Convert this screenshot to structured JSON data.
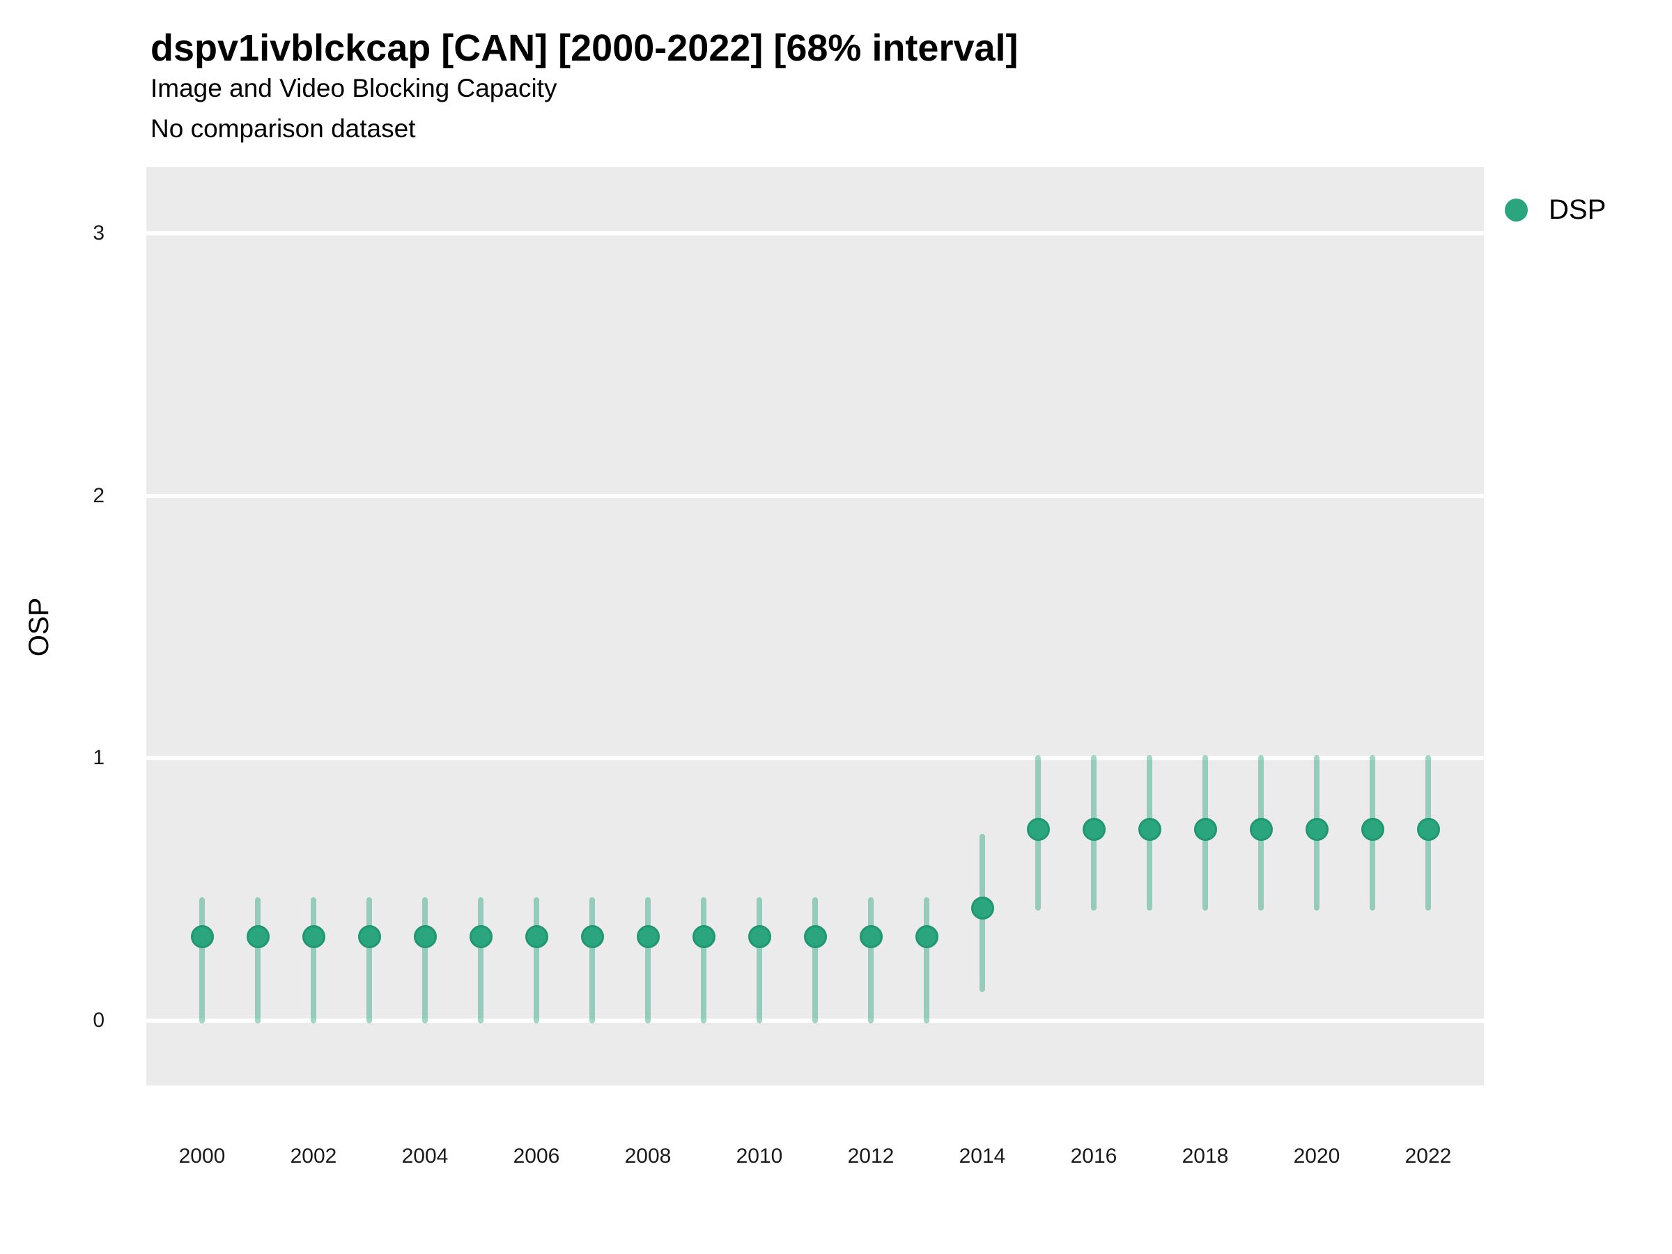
{
  "header": {
    "title": "dspv1ivblckcap [CAN] [2000-2022] [68% interval]",
    "subtitle": "Image and Video Blocking Capacity",
    "note": "No comparison dataset"
  },
  "legend": {
    "position": "right-top",
    "items": [
      {
        "label": "DSP",
        "color": "#2aa57e"
      }
    ]
  },
  "axes": {
    "y_title": "OSP",
    "y_ticks": [
      "0",
      "1",
      "2",
      "3"
    ],
    "x_ticks": [
      "2000",
      "2002",
      "2004",
      "2006",
      "2008",
      "2010",
      "2012",
      "2014",
      "2016",
      "2018",
      "2020",
      "2022"
    ]
  },
  "chart_data": {
    "type": "scatter",
    "title": "dspv1ivblckcap [CAN] [2000-2022] [68% interval]",
    "subtitle": "Image and Video Blocking Capacity",
    "note": "No comparison dataset",
    "xlabel": "",
    "ylabel": "OSP",
    "x": [
      2000,
      2001,
      2002,
      2003,
      2004,
      2005,
      2006,
      2007,
      2008,
      2009,
      2010,
      2011,
      2012,
      2013,
      2014,
      2015,
      2016,
      2017,
      2018,
      2019,
      2020,
      2021,
      2022
    ],
    "series": [
      {
        "name": "DSP",
        "values": [
          0.32,
          0.32,
          0.32,
          0.32,
          0.32,
          0.32,
          0.32,
          0.32,
          0.32,
          0.32,
          0.32,
          0.32,
          0.32,
          0.32,
          0.43,
          0.73,
          0.73,
          0.73,
          0.73,
          0.73,
          0.73,
          0.73,
          0.73
        ],
        "lower_68": [
          0.0,
          0.0,
          0.0,
          0.0,
          0.0,
          0.0,
          0.0,
          0.0,
          0.0,
          0.0,
          0.0,
          0.0,
          0.0,
          0.0,
          0.12,
          0.43,
          0.43,
          0.43,
          0.43,
          0.43,
          0.43,
          0.43,
          0.43
        ],
        "upper_68": [
          0.46,
          0.46,
          0.46,
          0.46,
          0.46,
          0.46,
          0.46,
          0.46,
          0.46,
          0.46,
          0.46,
          0.46,
          0.46,
          0.46,
          0.7,
          1.0,
          1.0,
          1.0,
          1.0,
          1.0,
          1.0,
          1.0,
          1.0
        ]
      }
    ],
    "xticks": [
      2000,
      2002,
      2004,
      2006,
      2008,
      2010,
      2012,
      2014,
      2016,
      2018,
      2020,
      2022
    ],
    "yticks": [
      0,
      1,
      2,
      3
    ],
    "xlim": [
      1999,
      2023
    ],
    "ylim": [
      -0.25,
      3.25
    ],
    "grid": "white major horizontal gridlines on grey panel",
    "legend_position": "right-top",
    "interval": "68%",
    "colors": {
      "point_fill": "#2aa57e",
      "point_border": "#1f9770",
      "interval_bar": "#2aa57e",
      "interval_bar_opacity": 0.45,
      "panel_bg": "#ebebeb",
      "gridline": "#ffffff",
      "text": "#000000"
    }
  }
}
